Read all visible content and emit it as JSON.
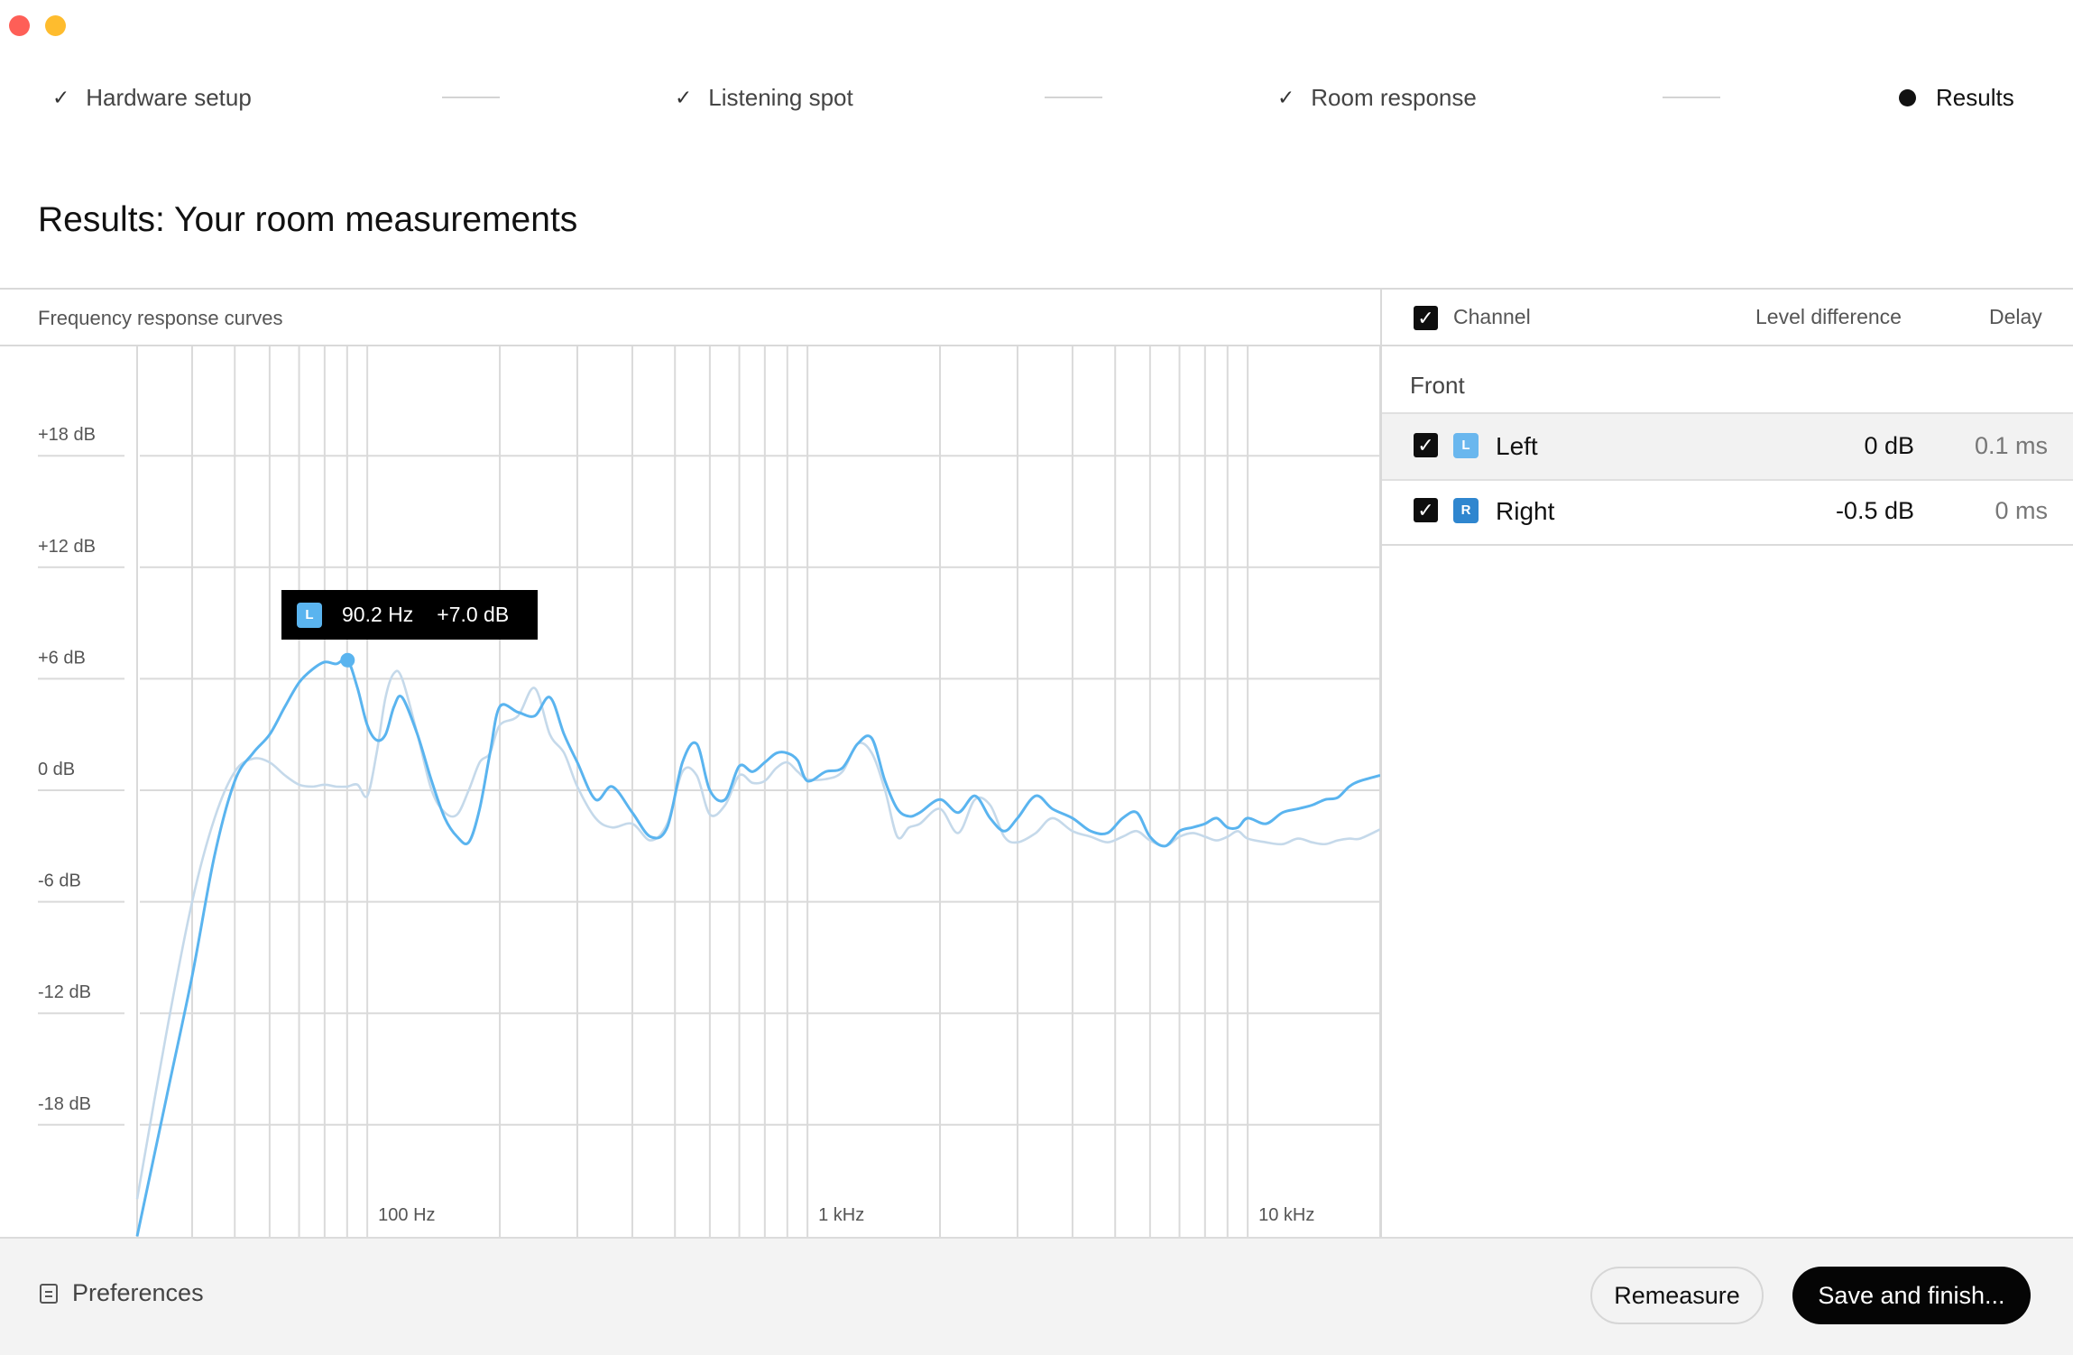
{
  "window": {
    "controls": [
      "close",
      "minimize"
    ]
  },
  "steps": [
    {
      "label": "Hardware setup",
      "state": "done"
    },
    {
      "label": "Listening spot",
      "state": "done"
    },
    {
      "label": "Room response",
      "state": "done"
    },
    {
      "label": "Results",
      "state": "active"
    }
  ],
  "page_title": "Results: Your room measurements",
  "chart": {
    "section_title": "Frequency response curves",
    "tooltip": {
      "channel_badge": "L",
      "frequency": "90.2 Hz",
      "level": "+7.0 dB"
    }
  },
  "chart_data": {
    "type": "line",
    "title": "Frequency response curves",
    "x_scale": "log",
    "xlim_hz": [
      30,
      20000
    ],
    "ylim_db": [
      -24,
      24
    ],
    "y_ticks": [
      "+18 dB",
      "+12 dB",
      "+6 dB",
      "0 dB",
      "-6 dB",
      "-12 dB",
      "-18 dB"
    ],
    "y_tick_values": [
      18,
      12,
      6,
      0,
      -6,
      -12,
      -18
    ],
    "x_ticks": [
      "100 Hz",
      "1 kHz",
      "10 kHz"
    ],
    "x_tick_values": [
      100,
      1000,
      10000
    ],
    "grid": true,
    "highlight_point": {
      "series": "L",
      "x": 90.2,
      "y": 7.0
    },
    "series": [
      {
        "name": "L",
        "color": "#5ab4ef",
        "emphasis": "primary",
        "x": [
          30,
          35,
          40,
          45,
          50,
          55,
          60,
          65,
          70,
          75,
          80,
          85,
          90.2,
          95,
          100,
          105,
          110,
          115,
          120,
          130,
          140,
          150,
          160,
          170,
          180,
          190,
          200,
          220,
          240,
          260,
          280,
          300,
          330,
          360,
          400,
          440,
          480,
          520,
          560,
          600,
          650,
          700,
          750,
          800,
          850,
          900,
          950,
          1000,
          1100,
          1200,
          1300,
          1400,
          1500,
          1600,
          1700,
          1800,
          2000,
          2200,
          2400,
          2600,
          2800,
          3000,
          3300,
          3600,
          4000,
          4400,
          4800,
          5200,
          5600,
          6000,
          6500,
          7000,
          7500,
          8000,
          8500,
          9000,
          9500,
          10000,
          11000,
          12000,
          13000,
          14000,
          15000,
          16000,
          17000,
          18000,
          20000
        ],
        "y": [
          -24,
          -16.5,
          -10,
          -3.5,
          0.5,
          2,
          3,
          4.5,
          5.8,
          6.5,
          6.9,
          6.8,
          7.0,
          5.5,
          3.5,
          2.7,
          3,
          4.5,
          5,
          3,
          0.5,
          -1.5,
          -2.5,
          -2.8,
          -1,
          2,
          4.5,
          4.2,
          4,
          5,
          3,
          1.5,
          -0.5,
          0.2,
          -1.2,
          -2.5,
          -2,
          1.5,
          2.5,
          0,
          -0.5,
          1.3,
          1,
          1.5,
          2,
          2,
          1.6,
          0.5,
          1,
          1.2,
          2.5,
          2.8,
          0.5,
          -1,
          -1.4,
          -1.2,
          -0.5,
          -1.2,
          -0.3,
          -1.5,
          -2.2,
          -1.5,
          -0.3,
          -1.0,
          -1.5,
          -2.2,
          -2.3,
          -1.5,
          -1.2,
          -2.5,
          -3.0,
          -2.2,
          -2.0,
          -1.8,
          -1.5,
          -2.0,
          -2.0,
          -1.5,
          -1.8,
          -1.2,
          -1.0,
          -0.8,
          -0.5,
          -0.4,
          0.2,
          0.5,
          0.8
        ]
      },
      {
        "name": "R",
        "color": "#c5d9ea",
        "emphasis": "secondary",
        "x": [
          30,
          35,
          40,
          45,
          50,
          55,
          60,
          65,
          70,
          75,
          80,
          85,
          90,
          95,
          100,
          105,
          110,
          115,
          120,
          130,
          140,
          150,
          160,
          170,
          180,
          190,
          200,
          220,
          240,
          260,
          280,
          300,
          330,
          360,
          400,
          440,
          480,
          520,
          560,
          600,
          650,
          700,
          750,
          800,
          850,
          900,
          950,
          1000,
          1100,
          1200,
          1300,
          1400,
          1500,
          1600,
          1700,
          1800,
          2000,
          2200,
          2400,
          2600,
          2800,
          3000,
          3300,
          3600,
          4000,
          4400,
          4800,
          5200,
          5600,
          6000,
          6500,
          7000,
          7500,
          8000,
          8500,
          9000,
          9500,
          10000,
          11000,
          12000,
          13000,
          14000,
          15000,
          16000,
          17000,
          18000,
          20000
        ],
        "y": [
          -22,
          -13,
          -6,
          -1.5,
          1,
          1.7,
          1.5,
          0.8,
          0.3,
          0.2,
          0.3,
          0.2,
          0.2,
          0.3,
          -0.3,
          2,
          5,
          6.3,
          6,
          3,
          0,
          -1.2,
          -1.3,
          0,
          1.5,
          2,
          3.5,
          4,
          5.5,
          3,
          2,
          0.2,
          -1.5,
          -2,
          -1.8,
          -2.7,
          -1.8,
          1,
          0.8,
          -1.3,
          -0.8,
          0.8,
          0.4,
          0.5,
          1.2,
          1.5,
          1.0,
          0.6,
          0.6,
          1.0,
          2.5,
          2.0,
          0,
          -2.5,
          -2.0,
          -1.8,
          -1.0,
          -2.3,
          -0.5,
          -0.8,
          -2.5,
          -2.8,
          -2.3,
          -1.5,
          -2.2,
          -2.5,
          -2.8,
          -2.5,
          -2.2,
          -2.7,
          -3.0,
          -2.5,
          -2.3,
          -2.5,
          -2.7,
          -2.5,
          -2.2,
          -2.6,
          -2.8,
          -2.9,
          -2.6,
          -2.8,
          -2.9,
          -2.7,
          -2.6,
          -2.6,
          -2.1
        ]
      }
    ]
  },
  "table": {
    "header": {
      "channel": "Channel",
      "level": "Level difference",
      "delay": "Delay"
    },
    "group": "Front",
    "rows": [
      {
        "badge": "L",
        "badge_color": "#6ab7ee",
        "name": "Left",
        "level": "0 dB",
        "delay": "0.1 ms",
        "checked": true
      },
      {
        "badge": "R",
        "badge_color": "#2f86cf",
        "name": "Right",
        "level": "-0.5 dB",
        "delay": "0 ms",
        "checked": true
      }
    ]
  },
  "footer": {
    "preferences_label": "Preferences",
    "remeasure_label": "Remeasure",
    "save_label": "Save and finish..."
  }
}
